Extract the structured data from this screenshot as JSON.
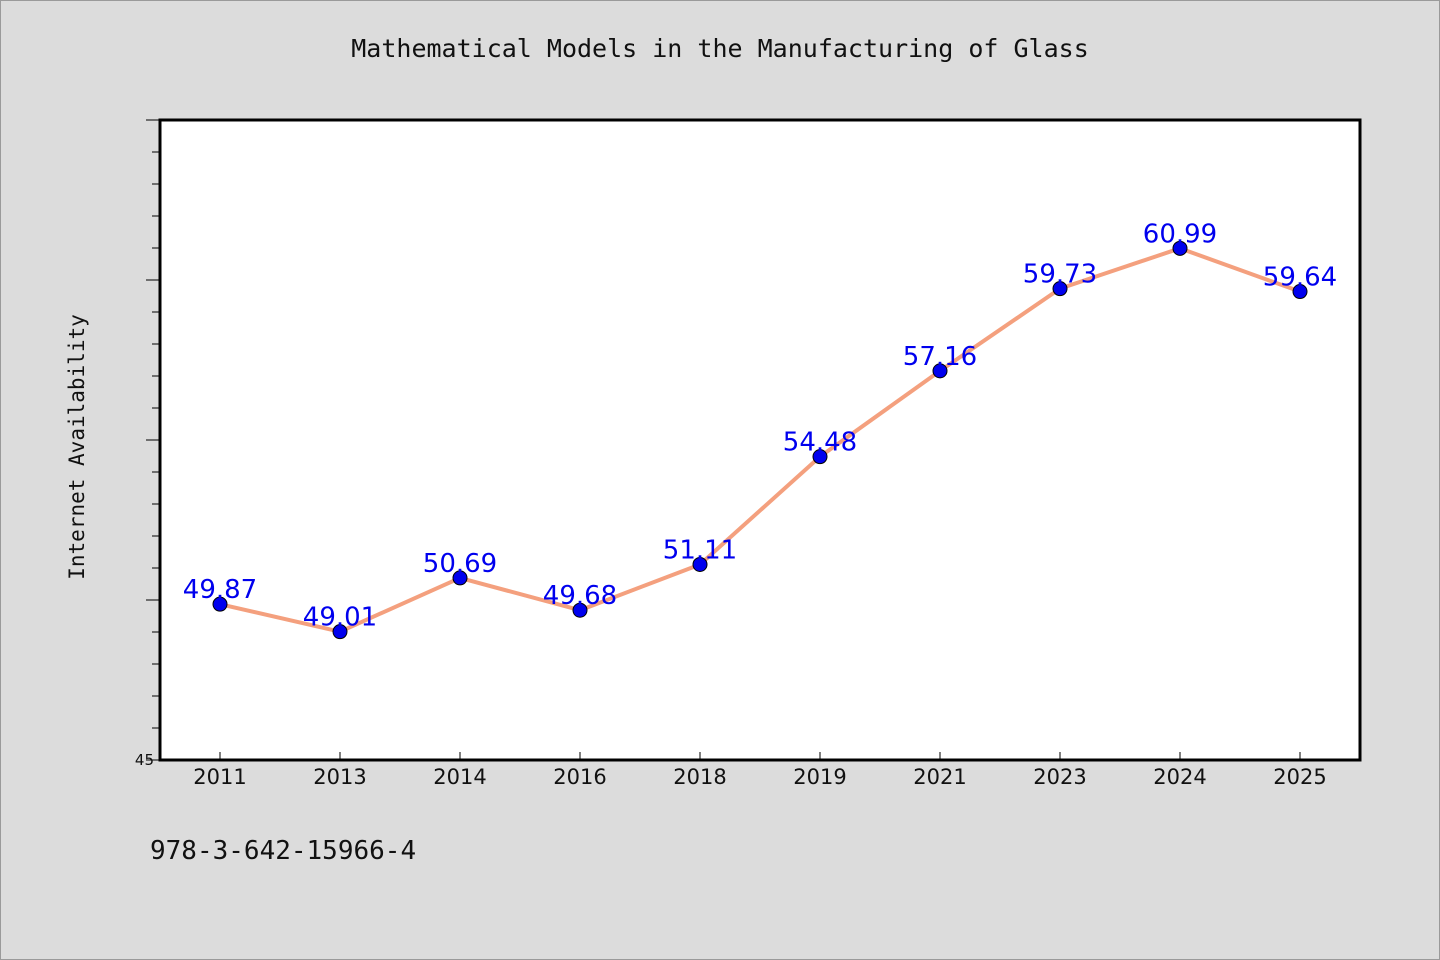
{
  "footer_text": "978-3-642-15966-4",
  "colors": {
    "background": "#dcdcdc",
    "plot_background": "#ffffff",
    "line": "#f4a07e",
    "marker": "#0000ee",
    "value_label": "#0000ee"
  },
  "chart_data": {
    "type": "line",
    "title": "Mathematical Models in the Manufacturing of Glass",
    "xlabel": "",
    "ylabel": "Internet Availability",
    "categories": [
      "2011",
      "2013",
      "2014",
      "2016",
      "2018",
      "2019",
      "2021",
      "2023",
      "2024",
      "2025"
    ],
    "series": [
      {
        "values": [
          49.87,
          49.01,
          50.69,
          49.68,
          51.11,
          54.48,
          57.16,
          59.73,
          60.99,
          59.64
        ]
      }
    ],
    "ylim": [
      45,
      65
    ],
    "y_tick_labels": [
      "45"
    ],
    "grid": false,
    "legend": "none"
  }
}
